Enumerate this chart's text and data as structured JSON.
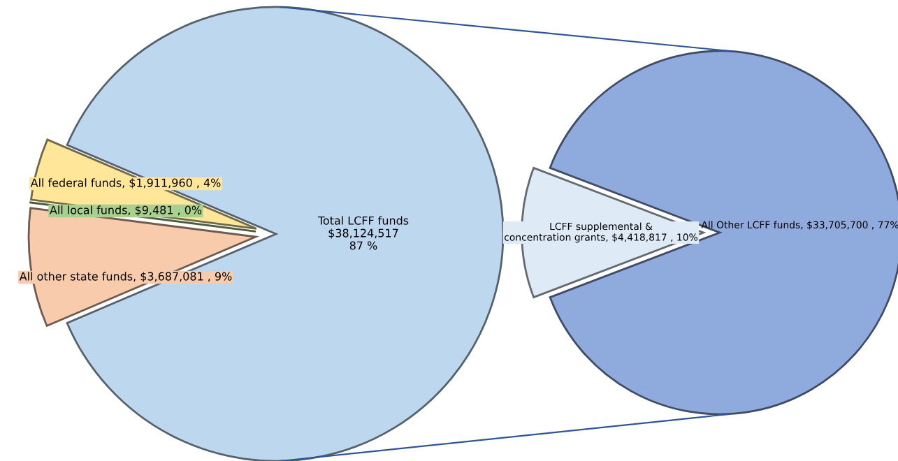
{
  "chart_data": [
    {
      "type": "pie",
      "categories": [
        "Total LCFF funds",
        "All federal funds",
        "All local funds",
        "All other state funds"
      ],
      "values": [
        38124517,
        1911960,
        9481,
        3687081
      ],
      "colors": [
        "#bdd7ee",
        "#ffe699",
        "#a9d18e",
        "#f8cbad"
      ],
      "value_labels": [
        "$38,124,517\n87 %",
        "$1,911,960 , 4%",
        "$9,481 , 0%",
        "$3,687,081 , 9%"
      ]
    },
    {
      "type": "pie",
      "categories": [
        "LCFF supplemental &\nconcentration grants",
        "All Other LCFF funds"
      ],
      "values": [
        4418817,
        33705700
      ],
      "colors": [
        "#deebf7",
        "#8faadc"
      ],
      "value_labels": [
        "$4,418,817 , 10%",
        "$33,705,700 , 77%"
      ]
    }
  ]
}
